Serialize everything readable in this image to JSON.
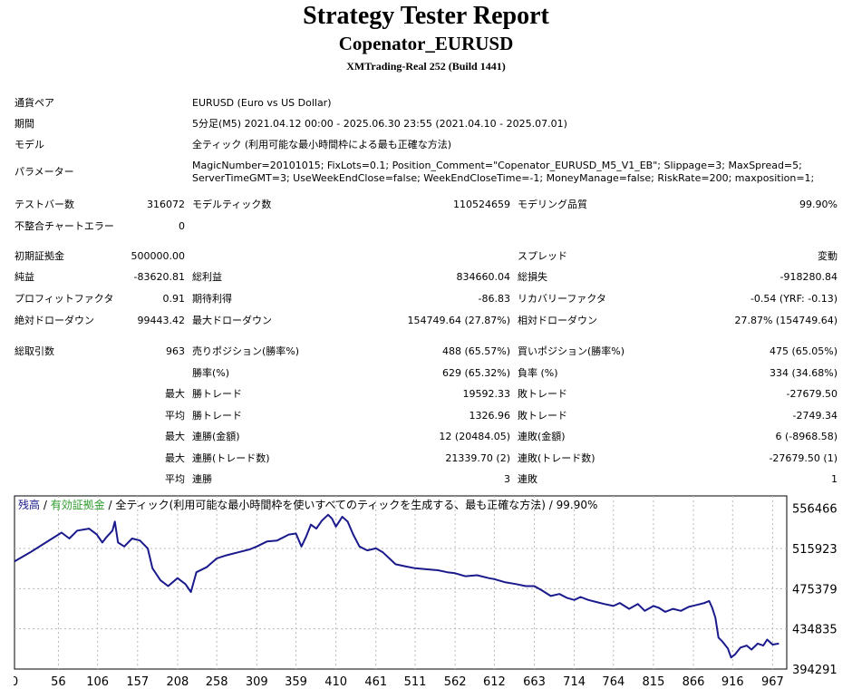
{
  "header": {
    "title": "Strategy Tester Report",
    "subtitle": "Copenator_EURUSD",
    "build": "XMTrading-Real 252 (Build 1441)"
  },
  "info": {
    "symbol_label": "通貨ペア",
    "symbol_value": "EURUSD (Euro vs US Dollar)",
    "period_label": "期間",
    "period_value": "5分足(M5) 2021.04.12 00:00 - 2025.06.30 23:55 (2021.04.10 - 2025.07.01)",
    "model_label": "モデル",
    "model_value": "全ティック (利用可能な最小時間枠による最も正確な方法)",
    "params_label": "パラメーター",
    "params_line1": "MagicNumber=20101015; FixLots=0.1; Position_Comment=\"Copenator_EURUSD_M5_V1_EB\"; Slippage=3; MaxSpread=5;",
    "params_line2": "ServerTimeGMT=3; UseWeekEndClose=false; WeekEndCloseTime=-1; MoneyManage=false; RiskRate=200; maxposition=1;"
  },
  "stats": {
    "bars_label": "テストバー数",
    "bars_value": "316072",
    "ticks_label": "モデルティック数",
    "ticks_value": "110524659",
    "quality_label": "モデリング品質",
    "quality_value": "99.90%",
    "mismatch_label": "不整合チャートエラー",
    "mismatch_value": "0",
    "deposit_label": "初期証拠金",
    "deposit_value": "500000.00",
    "spread_label": "スプレッド",
    "spread_value": "変動",
    "net_label": "純益",
    "net_value": "-83620.81",
    "gross_profit_label": "総利益",
    "gross_profit_value": "834660.04",
    "gross_loss_label": "総損失",
    "gross_loss_value": "-918280.84",
    "pf_label": "プロフィットファクタ",
    "pf_value": "0.91",
    "payoff_label": "期待利得",
    "payoff_value": "-86.83",
    "recovery_label": "リカバリーファクタ",
    "recovery_value": "-0.54 (YRF: -0.13)",
    "abs_dd_label": "絶対ドローダウン",
    "abs_dd_value": "99443.42",
    "max_dd_label": "最大ドローダウン",
    "max_dd_value": "154749.64 (27.87%)",
    "rel_dd_label": "相対ドローダウン",
    "rel_dd_value": "27.87% (154749.64)",
    "trades_label": "総取引数",
    "trades_value": "963",
    "short_label": "売りポジション(勝率%)",
    "short_value": "488 (65.57%)",
    "long_label": "買いポジション(勝率%)",
    "long_value": "475 (65.05%)",
    "winrate_label": "勝率(%)",
    "winrate_value": "629 (65.32%)",
    "lossrate_label": "負率 (%)",
    "lossrate_value": "334 (34.68%)",
    "max_prefix": "最大",
    "avg_prefix": "平均",
    "largest_win_label": "勝トレード",
    "largest_win_value": "19592.33",
    "largest_loss_label": "敗トレード",
    "largest_loss_value": "-27679.50",
    "avg_win_label": "勝トレード",
    "avg_win_value": "1326.96",
    "avg_loss_label": "敗トレード",
    "avg_loss_value": "-2749.34",
    "cons_wins_money_label": "連勝(金額)",
    "cons_wins_money_value": "12 (20484.05)",
    "cons_losses_money_label": "連敗(金額)",
    "cons_losses_money_value": "6 (-8968.58)",
    "cons_profit_label": "連勝(トレード数)",
    "cons_profit_value": "21339.70 (2)",
    "cons_loss_label": "連敗(トレード数)",
    "cons_loss_value": "-27679.50 (1)",
    "avg_cons_wins_label": "連勝",
    "avg_cons_wins_value": "3",
    "avg_cons_losses_label": "連敗",
    "avg_cons_losses_value": "1"
  },
  "chart_data": {
    "type": "line",
    "legend": {
      "balance": "残高",
      "sep1": " / ",
      "equity": "有効証拠金",
      "rest": " / 全ティック(利用可能な最小時間枠を使いすべてのティックを生成する、最も正確な方法) / 99.90%"
    },
    "balance_color": "#1a1a8c",
    "equity_color": "#2e9b2e",
    "x_ticks": [
      "0",
      "56",
      "106",
      "157",
      "208",
      "258",
      "309",
      "359",
      "410",
      "461",
      "511",
      "562",
      "612",
      "663",
      "714",
      "764",
      "815",
      "866",
      "916",
      "967"
    ],
    "y_ticks": [
      "556466",
      "515923",
      "475379",
      "434835",
      "394291"
    ],
    "xlim": [
      0,
      985
    ],
    "ylim": [
      394291,
      569000
    ],
    "series": [
      {
        "values": [
          [
            0,
            503000
          ],
          [
            20,
            512000
          ],
          [
            40,
            522000
          ],
          [
            60,
            532000
          ],
          [
            70,
            526000
          ],
          [
            80,
            534000
          ],
          [
            95,
            536000
          ],
          [
            105,
            530000
          ],
          [
            112,
            522000
          ],
          [
            118,
            528000
          ],
          [
            125,
            534000
          ],
          [
            128,
            543000
          ],
          [
            132,
            522000
          ],
          [
            140,
            518000
          ],
          [
            150,
            526000
          ],
          [
            160,
            524000
          ],
          [
            170,
            516000
          ],
          [
            176,
            496000
          ],
          [
            186,
            484000
          ],
          [
            196,
            478000
          ],
          [
            208,
            486000
          ],
          [
            218,
            480000
          ],
          [
            225,
            472000
          ],
          [
            232,
            492000
          ],
          [
            245,
            497000
          ],
          [
            258,
            506000
          ],
          [
            270,
            509000
          ],
          [
            285,
            512000
          ],
          [
            300,
            515000
          ],
          [
            309,
            518000
          ],
          [
            322,
            523000
          ],
          [
            335,
            524000
          ],
          [
            350,
            530000
          ],
          [
            359,
            531000
          ],
          [
            366,
            518000
          ],
          [
            372,
            528000
          ],
          [
            378,
            540000
          ],
          [
            385,
            536000
          ],
          [
            392,
            544000
          ],
          [
            400,
            550000
          ],
          [
            405,
            546000
          ],
          [
            410,
            538000
          ],
          [
            418,
            548000
          ],
          [
            425,
            543000
          ],
          [
            432,
            530000
          ],
          [
            440,
            518000
          ],
          [
            450,
            514000
          ],
          [
            461,
            516000
          ],
          [
            470,
            512000
          ],
          [
            478,
            506000
          ],
          [
            486,
            500000
          ],
          [
            498,
            498000
          ],
          [
            511,
            496000
          ],
          [
            525,
            495000
          ],
          [
            540,
            494000
          ],
          [
            552,
            492000
          ],
          [
            562,
            491000
          ],
          [
            575,
            488000
          ],
          [
            590,
            489000
          ],
          [
            605,
            486000
          ],
          [
            612,
            485000
          ],
          [
            625,
            482000
          ],
          [
            640,
            480000
          ],
          [
            652,
            478000
          ],
          [
            663,
            478000
          ],
          [
            672,
            474000
          ],
          [
            684,
            468000
          ],
          [
            695,
            470000
          ],
          [
            705,
            466000
          ],
          [
            714,
            464000
          ],
          [
            722,
            467000
          ],
          [
            732,
            464000
          ],
          [
            742,
            462000
          ],
          [
            752,
            460000
          ],
          [
            764,
            458000
          ],
          [
            772,
            461000
          ],
          [
            784,
            455000
          ],
          [
            795,
            460000
          ],
          [
            804,
            453000
          ],
          [
            815,
            458000
          ],
          [
            822,
            456000
          ],
          [
            830,
            452000
          ],
          [
            840,
            455000
          ],
          [
            850,
            453000
          ],
          [
            860,
            457000
          ],
          [
            870,
            459000
          ],
          [
            880,
            461000
          ],
          [
            886,
            463000
          ],
          [
            890,
            456000
          ],
          [
            894,
            446000
          ],
          [
            898,
            426000
          ],
          [
            903,
            422000
          ],
          [
            910,
            415000
          ],
          [
            914,
            406000
          ],
          [
            919,
            409000
          ],
          [
            926,
            416000
          ],
          [
            934,
            418000
          ],
          [
            940,
            414000
          ],
          [
            948,
            420000
          ],
          [
            955,
            418000
          ],
          [
            960,
            424000
          ],
          [
            967,
            419000
          ],
          [
            975,
            420000
          ]
        ]
      }
    ]
  }
}
